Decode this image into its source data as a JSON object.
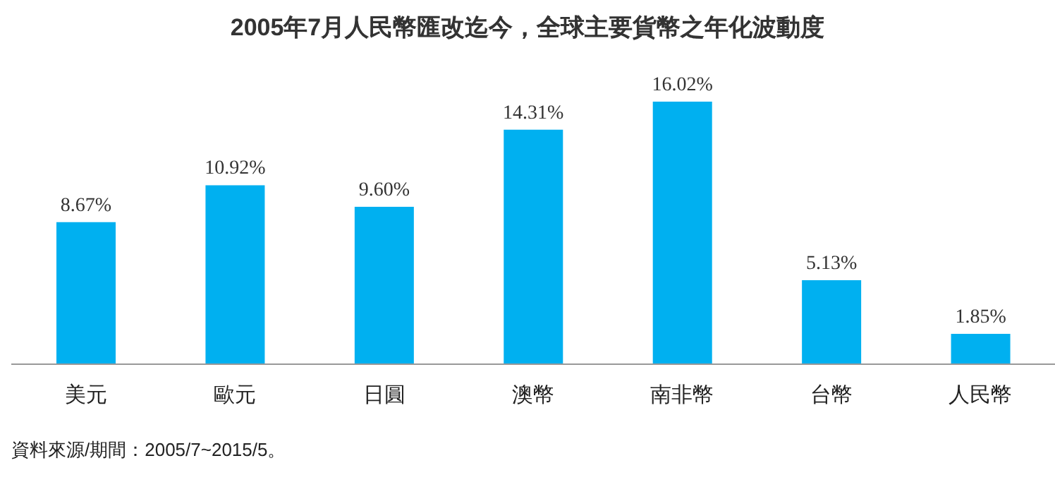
{
  "chart_data": {
    "type": "bar",
    "title": "2005年7月人民幣匯改迄今，全球主要貨幣之年化波動度",
    "categories": [
      "美元",
      "歐元",
      "日圓",
      "澳幣",
      "南非幣",
      "台幣",
      "人民幣"
    ],
    "values": [
      8.67,
      10.92,
      9.6,
      14.31,
      16.02,
      5.13,
      1.85
    ],
    "value_labels": [
      "8.67%",
      "10.92%",
      "9.60%",
      "14.31%",
      "16.02%",
      "5.13%",
      "1.85%"
    ],
    "color": "#00b0f0",
    "tick_labels": "x",
    "grid": false,
    "legend": false,
    "annotations": [
      "資料來源/期間：2005/7~2015/5。"
    ]
  }
}
